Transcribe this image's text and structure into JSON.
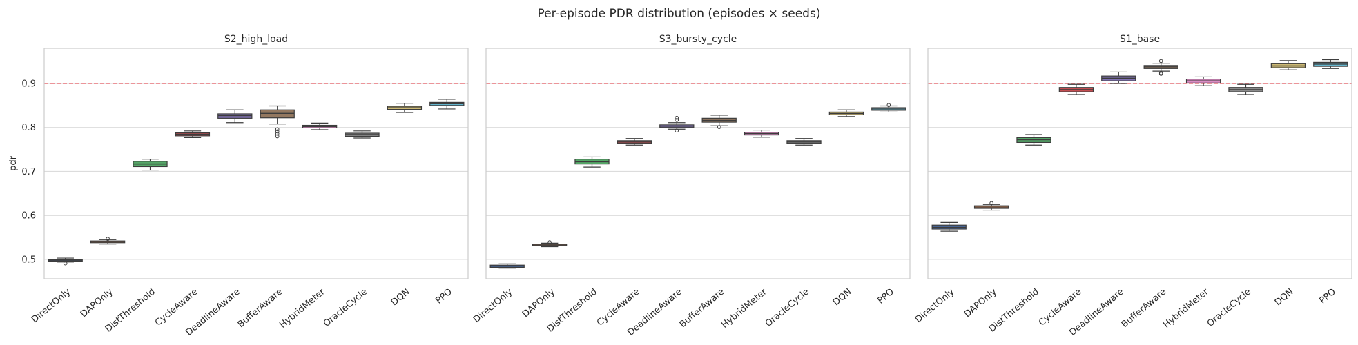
{
  "figure": {
    "title": "Per-episode PDR distribution (episodes × seeds)"
  },
  "chart_data": [
    {
      "type": "box",
      "title": "S2_high_load",
      "xlabel": "",
      "ylabel": "pdr",
      "ylim": [
        0.456,
        0.98
      ],
      "yticks": [
        "0.5",
        "0.6",
        "0.7",
        "0.8",
        "0.9"
      ],
      "reference_line": 0.9,
      "categories": [
        "DirectOnly",
        "DAPOnly",
        "DistThreshold",
        "CycleAware",
        "DeadlineAware",
        "BufferAware",
        "HybridMeter",
        "OracleCycle",
        "DQN",
        "PPO"
      ],
      "boxes": [
        {
          "category": "DirectOnly",
          "whislo": 0.494,
          "q1": 0.496,
          "med": 0.498,
          "q3": 0.5,
          "whishi": 0.503,
          "fliers": [
            0.491
          ]
        },
        {
          "category": "DAPOnly",
          "whislo": 0.535,
          "q1": 0.538,
          "med": 0.54,
          "q3": 0.542,
          "whishi": 0.545,
          "fliers": [
            0.547
          ]
        },
        {
          "category": "DistThreshold",
          "whislo": 0.703,
          "q1": 0.711,
          "med": 0.717,
          "q3": 0.723,
          "whishi": 0.728,
          "fliers": []
        },
        {
          "category": "CycleAware",
          "whislo": 0.777,
          "q1": 0.781,
          "med": 0.785,
          "q3": 0.788,
          "whishi": 0.792,
          "fliers": []
        },
        {
          "category": "DeadlineAware",
          "whislo": 0.811,
          "q1": 0.821,
          "med": 0.827,
          "q3": 0.831,
          "whishi": 0.84,
          "fliers": []
        },
        {
          "category": "BufferAware",
          "whislo": 0.808,
          "q1": 0.822,
          "med": 0.832,
          "q3": 0.84,
          "whishi": 0.849,
          "fliers": [
            0.796,
            0.791,
            0.786,
            0.78
          ]
        },
        {
          "category": "HybridMeter",
          "whislo": 0.795,
          "q1": 0.799,
          "med": 0.802,
          "q3": 0.805,
          "whishi": 0.81,
          "fliers": []
        },
        {
          "category": "OracleCycle",
          "whislo": 0.776,
          "q1": 0.78,
          "med": 0.784,
          "q3": 0.787,
          "whishi": 0.792,
          "fliers": []
        },
        {
          "category": "DQN",
          "whislo": 0.834,
          "q1": 0.841,
          "med": 0.845,
          "q3": 0.848,
          "whishi": 0.855,
          "fliers": []
        },
        {
          "category": "PPO",
          "whislo": 0.842,
          "q1": 0.85,
          "med": 0.854,
          "q3": 0.857,
          "whishi": 0.864,
          "fliers": []
        }
      ]
    },
    {
      "type": "box",
      "title": "S3_bursty_cycle",
      "xlabel": "",
      "ylabel": "",
      "ylim": [
        0.456,
        0.98
      ],
      "yticks": [
        "0.5",
        "0.6",
        "0.7",
        "0.8",
        "0.9"
      ],
      "reference_line": 0.9,
      "categories": [
        "DirectOnly",
        "DAPOnly",
        "DistThreshold",
        "CycleAware",
        "DeadlineAware",
        "BufferAware",
        "HybridMeter",
        "OracleCycle",
        "DQN",
        "PPO"
      ],
      "boxes": [
        {
          "category": "DirectOnly",
          "whislo": 0.48,
          "q1": 0.482,
          "med": 0.485,
          "q3": 0.487,
          "whishi": 0.49,
          "fliers": []
        },
        {
          "category": "DAPOnly",
          "whislo": 0.529,
          "q1": 0.531,
          "med": 0.533,
          "q3": 0.535,
          "whishi": 0.537,
          "fliers": [
            0.539
          ]
        },
        {
          "category": "DistThreshold",
          "whislo": 0.71,
          "q1": 0.717,
          "med": 0.722,
          "q3": 0.728,
          "whishi": 0.733,
          "fliers": []
        },
        {
          "category": "CycleAware",
          "whislo": 0.76,
          "q1": 0.764,
          "med": 0.767,
          "q3": 0.77,
          "whishi": 0.775,
          "fliers": []
        },
        {
          "category": "DeadlineAware",
          "whislo": 0.796,
          "q1": 0.8,
          "med": 0.803,
          "q3": 0.806,
          "whishi": 0.811,
          "fliers": [
            0.822,
            0.817,
            0.793
          ]
        },
        {
          "category": "BufferAware",
          "whislo": 0.804,
          "q1": 0.812,
          "med": 0.816,
          "q3": 0.821,
          "whishi": 0.828,
          "fliers": [
            0.801
          ]
        },
        {
          "category": "HybridMeter",
          "whislo": 0.778,
          "q1": 0.783,
          "med": 0.786,
          "q3": 0.789,
          "whishi": 0.794,
          "fliers": []
        },
        {
          "category": "OracleCycle",
          "whislo": 0.76,
          "q1": 0.764,
          "med": 0.767,
          "q3": 0.77,
          "whishi": 0.775,
          "fliers": []
        },
        {
          "category": "DQN",
          "whislo": 0.825,
          "q1": 0.829,
          "med": 0.832,
          "q3": 0.835,
          "whishi": 0.84,
          "fliers": []
        },
        {
          "category": "PPO",
          "whislo": 0.835,
          "q1": 0.839,
          "med": 0.842,
          "q3": 0.845,
          "whishi": 0.849,
          "fliers": [
            0.851
          ]
        }
      ]
    },
    {
      "type": "box",
      "title": "S1_base",
      "xlabel": "",
      "ylabel": "",
      "ylim": [
        0.456,
        0.98
      ],
      "yticks": [
        "0.5",
        "0.6",
        "0.7",
        "0.8",
        "0.9"
      ],
      "reference_line": 0.9,
      "categories": [
        "DirectOnly",
        "DAPOnly",
        "DistThreshold",
        "CycleAware",
        "DeadlineAware",
        "BufferAware",
        "HybridMeter",
        "OracleCycle",
        "DQN",
        "PPO"
      ],
      "boxes": [
        {
          "category": "DirectOnly",
          "whislo": 0.564,
          "q1": 0.569,
          "med": 0.573,
          "q3": 0.578,
          "whishi": 0.584,
          "fliers": []
        },
        {
          "category": "DAPOnly",
          "whislo": 0.612,
          "q1": 0.616,
          "med": 0.619,
          "q3": 0.622,
          "whishi": 0.625,
          "fliers": [
            0.628
          ]
        },
        {
          "category": "DistThreshold",
          "whislo": 0.76,
          "q1": 0.766,
          "med": 0.772,
          "q3": 0.777,
          "whishi": 0.784,
          "fliers": []
        },
        {
          "category": "CycleAware",
          "whislo": 0.875,
          "q1": 0.881,
          "med": 0.886,
          "q3": 0.891,
          "whishi": 0.898,
          "fliers": []
        },
        {
          "category": "DeadlineAware",
          "whislo": 0.9,
          "q1": 0.906,
          "med": 0.912,
          "q3": 0.917,
          "whishi": 0.926,
          "fliers": []
        },
        {
          "category": "BufferAware",
          "whislo": 0.928,
          "q1": 0.934,
          "med": 0.938,
          "q3": 0.941,
          "whishi": 0.946,
          "fliers": [
            0.951,
            0.924,
            0.922
          ]
        },
        {
          "category": "HybridMeter",
          "whislo": 0.895,
          "q1": 0.901,
          "med": 0.906,
          "q3": 0.91,
          "whishi": 0.915,
          "fliers": []
        },
        {
          "category": "OracleCycle",
          "whislo": 0.875,
          "q1": 0.881,
          "med": 0.886,
          "q3": 0.891,
          "whishi": 0.898,
          "fliers": []
        },
        {
          "category": "DQN",
          "whislo": 0.931,
          "q1": 0.936,
          "med": 0.94,
          "q3": 0.945,
          "whishi": 0.952,
          "fliers": []
        },
        {
          "category": "PPO",
          "whislo": 0.934,
          "q1": 0.939,
          "med": 0.944,
          "q3": 0.948,
          "whishi": 0.954,
          "fliers": []
        }
      ]
    }
  ],
  "colors": {
    "palette": [
      "#4c72b0",
      "#dd8452",
      "#55a868",
      "#c44e52",
      "#8172b3",
      "#937860",
      "#da8bc3",
      "#8c8c8c",
      "#ccb974",
      "#64b5cd"
    ],
    "reference_line": "#e8737a",
    "grid": "#dcdcdc",
    "axes_edge": "#cccccc",
    "box_line": "#3d3d3d"
  }
}
